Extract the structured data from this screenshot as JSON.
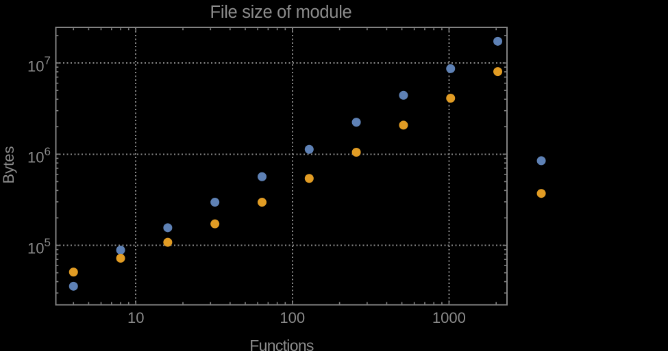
{
  "figure": {
    "background_color": "#000000",
    "frame_color": "#828282",
    "grid_color": "#8a8a8a",
    "text_color": "#8c8c8c"
  },
  "chart_data": {
    "type": "scatter",
    "title": "File size of module",
    "xlabel": "Functions",
    "ylabel": "Bytes",
    "x_scale": "log",
    "y_scale": "log",
    "xlim": [
      3.08,
      2343
    ],
    "ylim": [
      22300,
      24500000
    ],
    "grid": "dotted gray lines at decade positions, frame on all four sides with inward log ticks",
    "legend_position": "none",
    "x_ticks": [
      {
        "label": "10",
        "value": 10
      },
      {
        "label": "100",
        "value": 100
      },
      {
        "label": "1000",
        "value": 1000
      }
    ],
    "y_ticks": [
      {
        "base": "10",
        "exp": "5",
        "value": 100000
      },
      {
        "base": "10",
        "exp": "6",
        "value": 1000000
      },
      {
        "base": "10",
        "exp": "7",
        "value": 10000000
      }
    ],
    "series": [
      {
        "name": "series-1-blue",
        "color": "#5E81B5",
        "marker": "disk",
        "points": [
          [
            4,
            35600
          ],
          [
            8,
            88700
          ],
          [
            16,
            156000
          ],
          [
            32,
            297000
          ],
          [
            64,
            566000
          ],
          [
            128,
            1130000
          ],
          [
            256,
            2240000
          ],
          [
            512,
            4420000
          ],
          [
            1024,
            8670000
          ],
          [
            2048,
            17300000
          ],
          [
            3884,
            847000
          ]
        ]
      },
      {
        "name": "series-2-orange",
        "color": "#E19C24",
        "marker": "disk",
        "points": [
          [
            4,
            50900
          ],
          [
            8,
            72200
          ],
          [
            16,
            108000
          ],
          [
            32,
            172000
          ],
          [
            64,
            297000
          ],
          [
            128,
            542000
          ],
          [
            256,
            1050000
          ],
          [
            512,
            2080000
          ],
          [
            1024,
            4110000
          ],
          [
            2048,
            8050000
          ],
          [
            3884,
            371000
          ]
        ]
      }
    ]
  }
}
